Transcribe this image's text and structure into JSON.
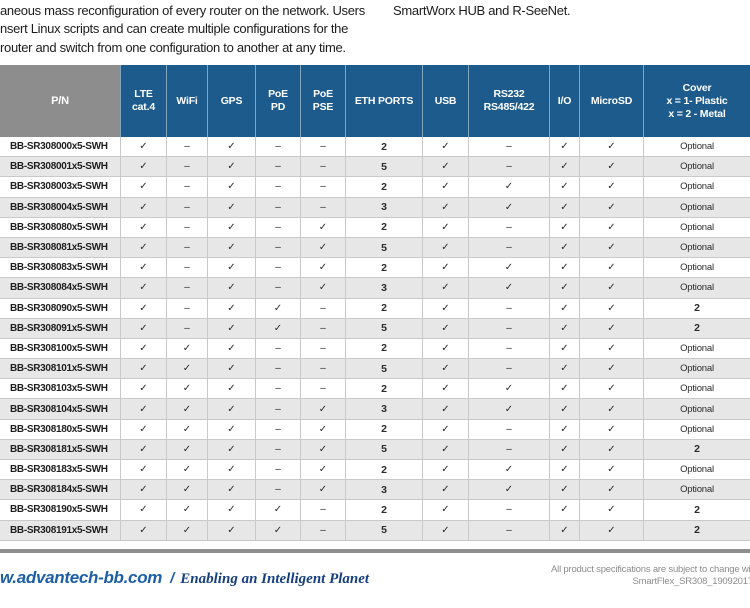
{
  "intro": {
    "left_lines": [
      "aneous mass reconfiguration of every router on the network. Users",
      "nsert Linux scripts and can create multiple configurations for the",
      "router and switch from one configuration to another at any time."
    ],
    "right_line": "SmartWorx HUB and R-SeeNet."
  },
  "table": {
    "columns": [
      {
        "id": "pn",
        "label": "P/N"
      },
      {
        "id": "lte",
        "label": "LTE\ncat.4"
      },
      {
        "id": "wifi",
        "label": "WiFi"
      },
      {
        "id": "gps",
        "label": "GPS"
      },
      {
        "id": "poe-pd",
        "label": "PoE\nPD"
      },
      {
        "id": "poe-pse",
        "label": "PoE\nPSE"
      },
      {
        "id": "eth-ports",
        "label": "ETH PORTS"
      },
      {
        "id": "usb",
        "label": "USB"
      },
      {
        "id": "rs232-rs485",
        "label": "RS232\nRS485/422"
      },
      {
        "id": "io",
        "label": "I/O"
      },
      {
        "id": "microsd",
        "label": "MicroSD"
      },
      {
        "id": "cover",
        "label": "Cover\nx = 1- Plastic\nx = 2 - Metal"
      }
    ],
    "check_glyph": "✓",
    "dash_glyph": "–",
    "rows": [
      {
        "pn": "BB-SR308000x5-SWH",
        "cells": [
          "✓",
          "–",
          "✓",
          "–",
          "–",
          "2",
          "✓",
          "–",
          "✓",
          "✓",
          "Optional"
        ]
      },
      {
        "pn": "BB-SR308001x5-SWH",
        "cells": [
          "✓",
          "–",
          "✓",
          "–",
          "–",
          "5",
          "✓",
          "–",
          "✓",
          "✓",
          "Optional"
        ]
      },
      {
        "pn": "BB-SR308003x5-SWH",
        "cells": [
          "✓",
          "–",
          "✓",
          "–",
          "–",
          "2",
          "✓",
          "✓",
          "✓",
          "✓",
          "Optional"
        ]
      },
      {
        "pn": "BB-SR308004x5-SWH",
        "cells": [
          "✓",
          "–",
          "✓",
          "–",
          "–",
          "3",
          "✓",
          "✓",
          "✓",
          "✓",
          "Optional"
        ]
      },
      {
        "pn": "BB-SR308080x5-SWH",
        "cells": [
          "✓",
          "–",
          "✓",
          "–",
          "✓",
          "2",
          "✓",
          "–",
          "✓",
          "✓",
          "Optional"
        ]
      },
      {
        "pn": "BB-SR308081x5-SWH",
        "cells": [
          "✓",
          "–",
          "✓",
          "–",
          "✓",
          "5",
          "✓",
          "–",
          "✓",
          "✓",
          "Optional"
        ]
      },
      {
        "pn": "BB-SR308083x5-SWH",
        "cells": [
          "✓",
          "–",
          "✓",
          "–",
          "✓",
          "2",
          "✓",
          "✓",
          "✓",
          "✓",
          "Optional"
        ]
      },
      {
        "pn": "BB-SR308084x5-SWH",
        "cells": [
          "✓",
          "–",
          "✓",
          "–",
          "✓",
          "3",
          "✓",
          "✓",
          "✓",
          "✓",
          "Optional"
        ]
      },
      {
        "pn": "BB-SR308090x5-SWH",
        "cells": [
          "✓",
          "–",
          "✓",
          "✓",
          "–",
          "2",
          "✓",
          "–",
          "✓",
          "✓",
          "2"
        ]
      },
      {
        "pn": "BB-SR308091x5-SWH",
        "cells": [
          "✓",
          "–",
          "✓",
          "✓",
          "–",
          "5",
          "✓",
          "–",
          "✓",
          "✓",
          "2"
        ]
      },
      {
        "pn": "BB-SR308100x5-SWH",
        "cells": [
          "✓",
          "✓",
          "✓",
          "–",
          "–",
          "2",
          "✓",
          "–",
          "✓",
          "✓",
          "Optional"
        ]
      },
      {
        "pn": "BB-SR308101x5-SWH",
        "cells": [
          "✓",
          "✓",
          "✓",
          "–",
          "–",
          "5",
          "✓",
          "–",
          "✓",
          "✓",
          "Optional"
        ]
      },
      {
        "pn": "BB-SR308103x5-SWH",
        "cells": [
          "✓",
          "✓",
          "✓",
          "–",
          "–",
          "2",
          "✓",
          "✓",
          "✓",
          "✓",
          "Optional"
        ]
      },
      {
        "pn": "BB-SR308104x5-SWH",
        "cells": [
          "✓",
          "✓",
          "✓",
          "–",
          "✓",
          "3",
          "✓",
          "✓",
          "✓",
          "✓",
          "Optional"
        ]
      },
      {
        "pn": "BB-SR308180x5-SWH",
        "cells": [
          "✓",
          "✓",
          "✓",
          "–",
          "✓",
          "2",
          "✓",
          "–",
          "✓",
          "✓",
          "Optional"
        ]
      },
      {
        "pn": "BB-SR308181x5-SWH",
        "cells": [
          "✓",
          "✓",
          "✓",
          "–",
          "✓",
          "5",
          "✓",
          "–",
          "✓",
          "✓",
          "2"
        ]
      },
      {
        "pn": "BB-SR308183x5-SWH",
        "cells": [
          "✓",
          "✓",
          "✓",
          "–",
          "✓",
          "2",
          "✓",
          "✓",
          "✓",
          "✓",
          "Optional"
        ]
      },
      {
        "pn": "BB-SR308184x5-SWH",
        "cells": [
          "✓",
          "✓",
          "✓",
          "–",
          "✓",
          "3",
          "✓",
          "✓",
          "✓",
          "✓",
          "Optional"
        ]
      },
      {
        "pn": "BB-SR308190x5-SWH",
        "cells": [
          "✓",
          "✓",
          "✓",
          "✓",
          "–",
          "2",
          "✓",
          "–",
          "✓",
          "✓",
          "2"
        ]
      },
      {
        "pn": "BB-SR308191x5-SWH",
        "cells": [
          "✓",
          "✓",
          "✓",
          "✓",
          "–",
          "5",
          "✓",
          "–",
          "✓",
          "✓",
          "2"
        ]
      }
    ]
  },
  "footer": {
    "site": "w.advantech-bb.com",
    "separator": "/",
    "tagline": "Enabling an Intelligent Planet",
    "note_line1": "All product specifications are subject to change with",
    "note_line2": "SmartFlex_SR308_19092017d"
  },
  "colors": {
    "header_blue": "#1d5b8d",
    "pn_header_gray": "#8d8d8d",
    "row_alt_gray": "#e7e7e7",
    "footer_blue": "#1c5fa6",
    "tagline_navy": "#163f80",
    "note_gray": "#8c8c8c"
  }
}
